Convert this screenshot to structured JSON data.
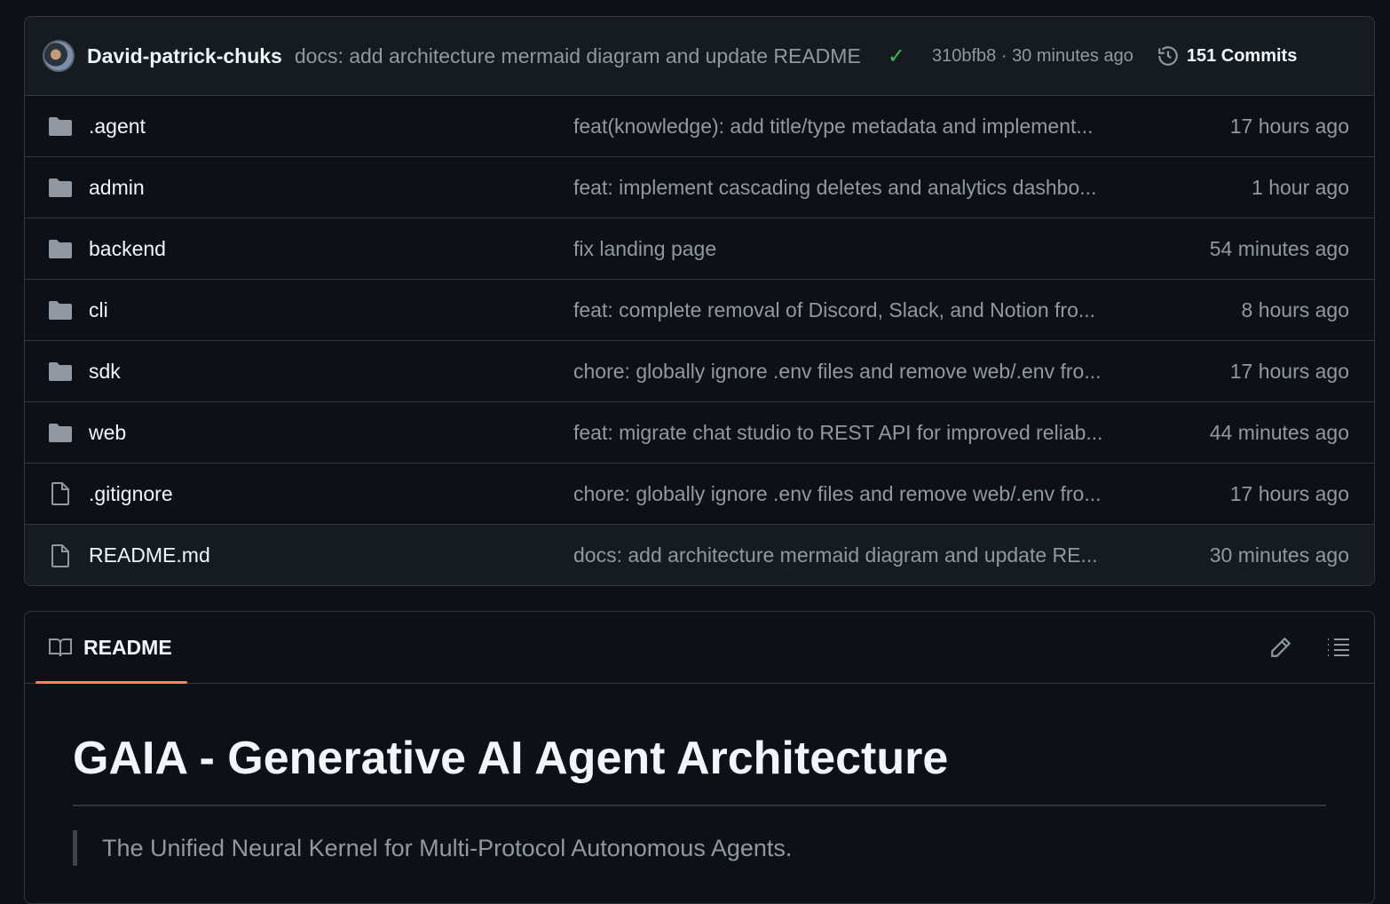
{
  "latest_commit": {
    "author": "David-patrick-chuks",
    "message": "docs: add architecture mermaid diagram and update README",
    "status": "success",
    "hash": "310bfb8",
    "time": "30 minutes ago",
    "separator": "·",
    "commits_label": "151 Commits"
  },
  "files": [
    {
      "name": ".agent",
      "type": "folder",
      "message": "feat(knowledge): add title/type metadata and implement...",
      "time": "17 hours ago"
    },
    {
      "name": "admin",
      "type": "folder",
      "message": "feat: implement cascading deletes and analytics dashbo...",
      "time": "1 hour ago"
    },
    {
      "name": "backend",
      "type": "folder",
      "message": "fix landing page",
      "time": "54 minutes ago"
    },
    {
      "name": "cli",
      "type": "folder",
      "message": "feat: complete removal of Discord, Slack, and Notion fro...",
      "time": "8 hours ago"
    },
    {
      "name": "sdk",
      "type": "folder",
      "message": "chore: globally ignore .env files and remove web/.env fro...",
      "time": "17 hours ago"
    },
    {
      "name": "web",
      "type": "folder",
      "message": "feat: migrate chat studio to REST API for improved reliab...",
      "time": "44 minutes ago"
    },
    {
      "name": ".gitignore",
      "type": "file",
      "message": "chore: globally ignore .env files and remove web/.env fro...",
      "time": "17 hours ago"
    },
    {
      "name": "README.md",
      "type": "file",
      "message": "docs: add architecture mermaid diagram and update RE...",
      "time": "30 minutes ago"
    }
  ],
  "readme": {
    "tab_label": "README",
    "title": "GAIA - Generative AI Agent Architecture",
    "tagline": "The Unified Neural Kernel for Multi-Protocol Autonomous Agents."
  },
  "colors": {
    "accent_underline": "#f78166",
    "success": "#3fb950",
    "background": "#0d1117"
  }
}
